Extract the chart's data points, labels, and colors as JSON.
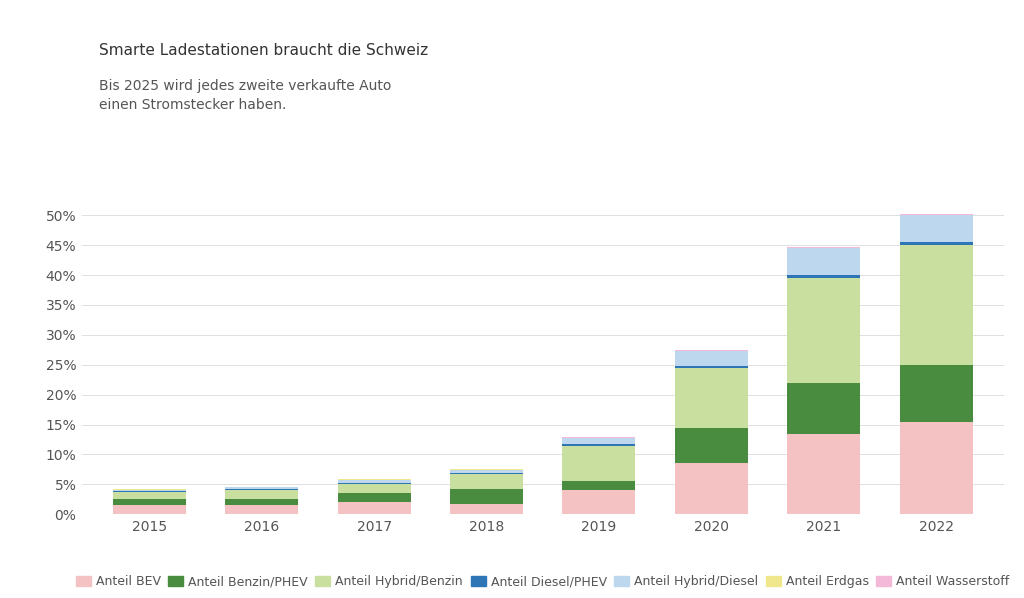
{
  "years": [
    "2015",
    "2016",
    "2017",
    "2018",
    "2019",
    "2020",
    "2021",
    "2022"
  ],
  "series": {
    "Anteil BEV": [
      1.5,
      1.5,
      2.0,
      1.8,
      4.0,
      8.5,
      13.5,
      15.5
    ],
    "Anteil Benzin/PHEV": [
      1.0,
      1.0,
      1.5,
      2.5,
      1.5,
      6.0,
      8.5,
      9.5
    ],
    "Anteil Hybrid/Benzin": [
      1.3,
      1.6,
      1.5,
      2.5,
      6.0,
      10.0,
      17.5,
      20.0
    ],
    "Anteil Diesel/PHEV": [
      0.08,
      0.08,
      0.15,
      0.15,
      0.2,
      0.3,
      0.5,
      0.5
    ],
    "Anteil Hybrid/Diesel": [
      0.2,
      0.3,
      0.5,
      0.4,
      1.0,
      2.5,
      4.5,
      4.5
    ],
    "Anteil Erdgas": [
      0.1,
      0.15,
      0.2,
      0.2,
      0.1,
      0.05,
      0.05,
      0.05
    ],
    "Anteil Wasserstoff": [
      0.0,
      0.0,
      0.0,
      0.0,
      0.05,
      0.1,
      0.1,
      0.1
    ]
  },
  "colors": {
    "Anteil BEV": "#f4c2c2",
    "Anteil Benzin/PHEV": "#4a8c3f",
    "Anteil Hybrid/Benzin": "#c8dfa0",
    "Anteil Diesel/PHEV": "#2e75b6",
    "Anteil Hybrid/Diesel": "#bdd7ee",
    "Anteil Erdgas": "#f0e68c",
    "Anteil Wasserstoff": "#f4b8d8"
  },
  "title1": "Smarte Ladestationen braucht die Schweiz",
  "title2": "Bis 2025 wird jedes zweite verkaufte Auto\neinen Stromstecker haben.",
  "marker1_color": "#bbbbbb",
  "marker2_color": "#888888",
  "ylim": [
    0,
    0.52
  ],
  "yticks": [
    0.0,
    0.05,
    0.1,
    0.15,
    0.2,
    0.25,
    0.3,
    0.35,
    0.4,
    0.45,
    0.5
  ],
  "ytick_labels": [
    "0%",
    "5%",
    "10%",
    "15%",
    "20%",
    "25%",
    "30%",
    "35%",
    "40%",
    "45%",
    "50%"
  ],
  "background_color": "#ffffff",
  "bar_width": 0.65,
  "title1_fontsize": 11,
  "title2_fontsize": 10,
  "axis_fontsize": 10,
  "legend_fontsize": 9
}
